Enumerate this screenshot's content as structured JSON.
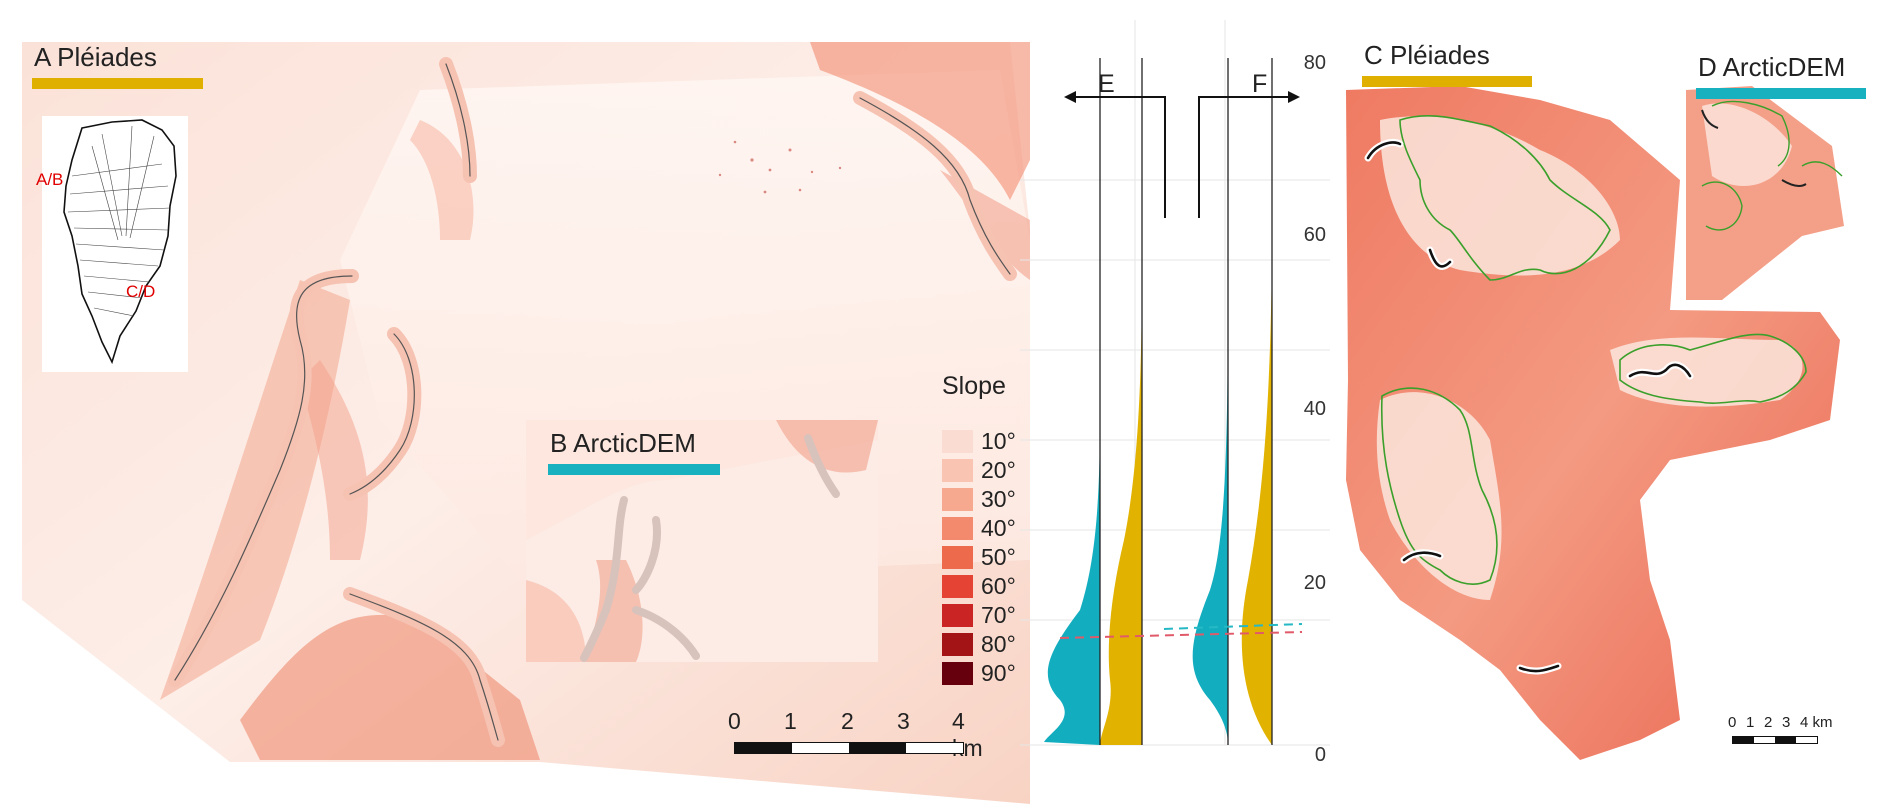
{
  "panels": {
    "a": {
      "label": "A Pléiades",
      "bar_color": "#e0b000"
    },
    "b": {
      "label": "B ArcticDEM",
      "bar_color": "#17b1bf"
    },
    "c": {
      "label": "C Pléiades",
      "bar_color": "#e0b000"
    },
    "d": {
      "label": "D ArcticDEM",
      "bar_color": "#17b1bf"
    }
  },
  "inset_map": {
    "labels": [
      "A/B",
      "C/D"
    ]
  },
  "legend": {
    "title": "Slope",
    "items": [
      {
        "label": "10°",
        "color": "#fbdcd2"
      },
      {
        "label": "20°",
        "color": "#f9c4b1"
      },
      {
        "label": "30°",
        "color": "#f6a98f"
      },
      {
        "label": "40°",
        "color": "#f48a6d"
      },
      {
        "label": "50°",
        "color": "#ee6a4c"
      },
      {
        "label": "60°",
        "color": "#e54434"
      },
      {
        "label": "70°",
        "color": "#cb2424"
      },
      {
        "label": "80°",
        "color": "#a31417"
      },
      {
        "label": "90°",
        "color": "#67000d"
      }
    ]
  },
  "scale_bars": {
    "main": {
      "labels": [
        "0",
        "1",
        "2",
        "3",
        "4 km"
      ]
    },
    "small": {
      "labels": [
        "0",
        "1",
        "2",
        "3",
        "4 km"
      ]
    }
  },
  "profile_chart": {
    "labels": {
      "e": "E",
      "f": "F"
    },
    "axis_ticks": [
      "80",
      "60",
      "40",
      "20",
      "0"
    ],
    "colors": {
      "arcticdem": "#12aebf",
      "pleiades": "#e2b200",
      "dash_blue": "#26b8c4",
      "dash_red": "#e05a6a"
    }
  }
}
